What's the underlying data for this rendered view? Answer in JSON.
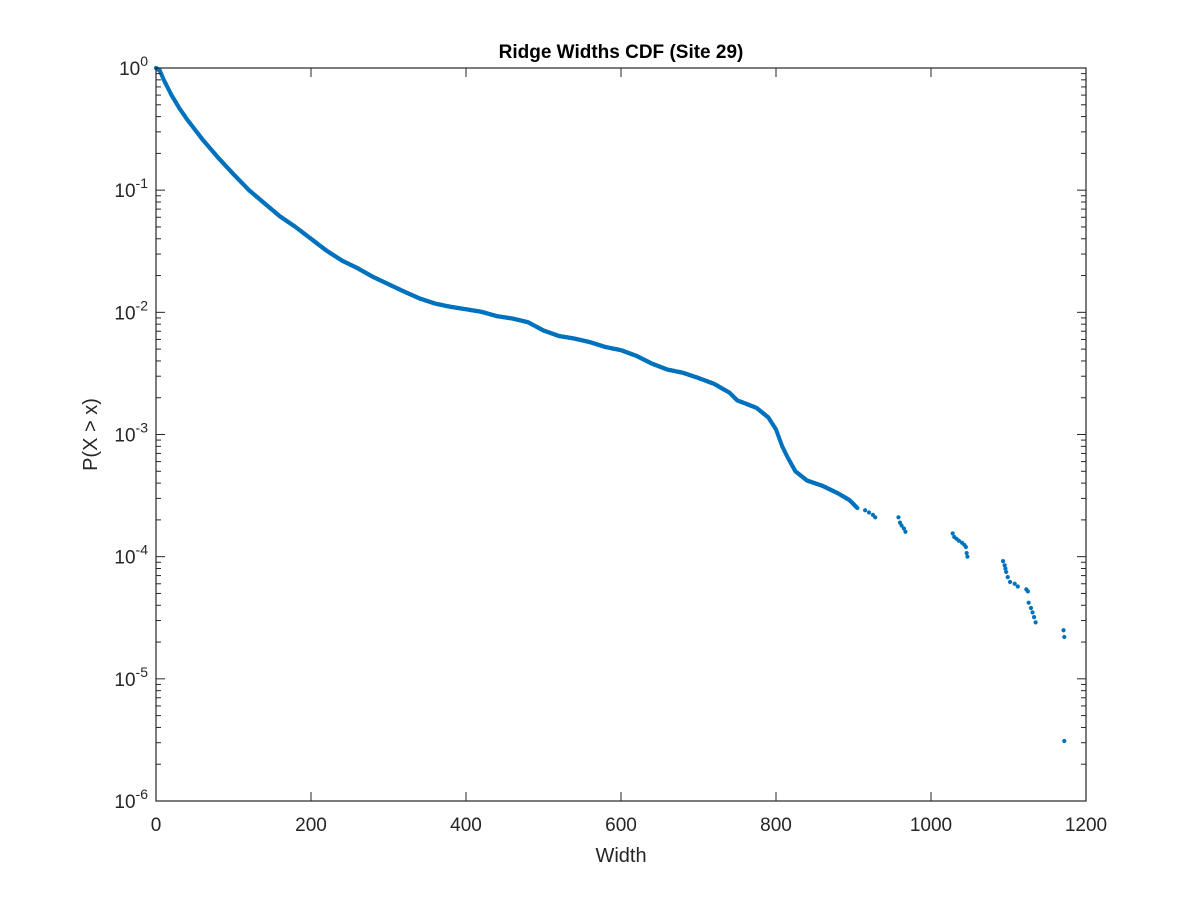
{
  "chart_data": {
    "type": "scatter",
    "title": "Ridge Widths CDF (Site 29)",
    "xlabel": "Width",
    "ylabel": "P(X > x)",
    "xlim": [
      0,
      1200
    ],
    "ylim": [
      1e-06,
      1
    ],
    "yscale": "log",
    "grid": false,
    "legend": "none",
    "marker_color": "#0072bd",
    "x_ticks": [
      0,
      200,
      400,
      600,
      800,
      1000,
      1200
    ],
    "x_tick_labels": [
      "0",
      "200",
      "400",
      "600",
      "800",
      "1000",
      "1200"
    ],
    "y_ticks": [
      1e-06,
      1e-05,
      0.0001,
      0.001,
      0.01,
      0.1,
      1
    ],
    "y_tick_labels": [
      {
        "base": "10",
        "exp": "-6"
      },
      {
        "base": "10",
        "exp": "-5"
      },
      {
        "base": "10",
        "exp": "-4"
      },
      {
        "base": "10",
        "exp": "-3"
      },
      {
        "base": "10",
        "exp": "-2"
      },
      {
        "base": "10",
        "exp": "-1"
      },
      {
        "base": "10",
        "exp": "0"
      }
    ],
    "curve_points": [
      [
        0,
        1.0
      ],
      [
        5,
        0.95
      ],
      [
        10,
        0.8
      ],
      [
        20,
        0.6
      ],
      [
        30,
        0.47
      ],
      [
        40,
        0.38
      ],
      [
        60,
        0.26
      ],
      [
        80,
        0.185
      ],
      [
        100,
        0.135
      ],
      [
        120,
        0.1
      ],
      [
        140,
        0.078
      ],
      [
        160,
        0.061
      ],
      [
        180,
        0.05
      ],
      [
        200,
        0.04
      ],
      [
        220,
        0.032
      ],
      [
        240,
        0.0265
      ],
      [
        260,
        0.023
      ],
      [
        280,
        0.0195
      ],
      [
        300,
        0.017
      ],
      [
        320,
        0.0148
      ],
      [
        340,
        0.013
      ],
      [
        360,
        0.0118
      ],
      [
        380,
        0.0111
      ],
      [
        400,
        0.0106
      ],
      [
        420,
        0.0101
      ],
      [
        440,
        0.0093
      ],
      [
        460,
        0.0089
      ],
      [
        480,
        0.0083
      ],
      [
        500,
        0.0071
      ],
      [
        520,
        0.0064
      ],
      [
        540,
        0.0061
      ],
      [
        560,
        0.0057
      ],
      [
        580,
        0.0052
      ],
      [
        600,
        0.0049
      ],
      [
        620,
        0.0044
      ],
      [
        640,
        0.0038
      ],
      [
        660,
        0.0034
      ],
      [
        680,
        0.0032
      ],
      [
        700,
        0.0029
      ],
      [
        720,
        0.0026
      ],
      [
        740,
        0.0022
      ],
      [
        750,
        0.0019
      ],
      [
        760,
        0.0018
      ],
      [
        775,
        0.00165
      ],
      [
        790,
        0.00138
      ],
      [
        800,
        0.0011
      ],
      [
        808,
        0.0008
      ],
      [
        815,
        0.00065
      ],
      [
        825,
        0.0005
      ],
      [
        840,
        0.00042
      ],
      [
        860,
        0.00038
      ],
      [
        880,
        0.00033
      ],
      [
        895,
        0.00029
      ],
      [
        905,
        0.00025
      ]
    ],
    "tail_points": [
      [
        915,
        0.00024
      ],
      [
        920,
        0.00023
      ],
      [
        925,
        0.00022
      ],
      [
        928,
        0.00021
      ],
      [
        958,
        0.00021
      ],
      [
        960,
        0.00019
      ],
      [
        962,
        0.00018
      ],
      [
        965,
        0.00017
      ],
      [
        967,
        0.00016
      ],
      [
        1028,
        0.000155
      ],
      [
        1030,
        0.000145
      ],
      [
        1033,
        0.00014
      ],
      [
        1036,
        0.000135
      ],
      [
        1040,
        0.00013
      ],
      [
        1043,
        0.000125
      ],
      [
        1045,
        0.00012
      ],
      [
        1046,
        0.000107
      ],
      [
        1047,
        0.0001
      ],
      [
        1093,
        9.2e-05
      ],
      [
        1095,
        8.5e-05
      ],
      [
        1096,
        8e-05
      ],
      [
        1097,
        7.5e-05
      ],
      [
        1099,
        6.8e-05
      ],
      [
        1102,
        6.2e-05
      ],
      [
        1108,
        6e-05
      ],
      [
        1112,
        5.7e-05
      ],
      [
        1123,
        5.4e-05
      ],
      [
        1125,
        5.2e-05
      ],
      [
        1126,
        4.2e-05
      ],
      [
        1129,
        3.8e-05
      ],
      [
        1131,
        3.5e-05
      ],
      [
        1133,
        3.2e-05
      ],
      [
        1135,
        2.9e-05
      ],
      [
        1171,
        2.5e-05
      ],
      [
        1172,
        2.2e-05
      ],
      [
        1172,
        3.1e-06
      ]
    ]
  }
}
